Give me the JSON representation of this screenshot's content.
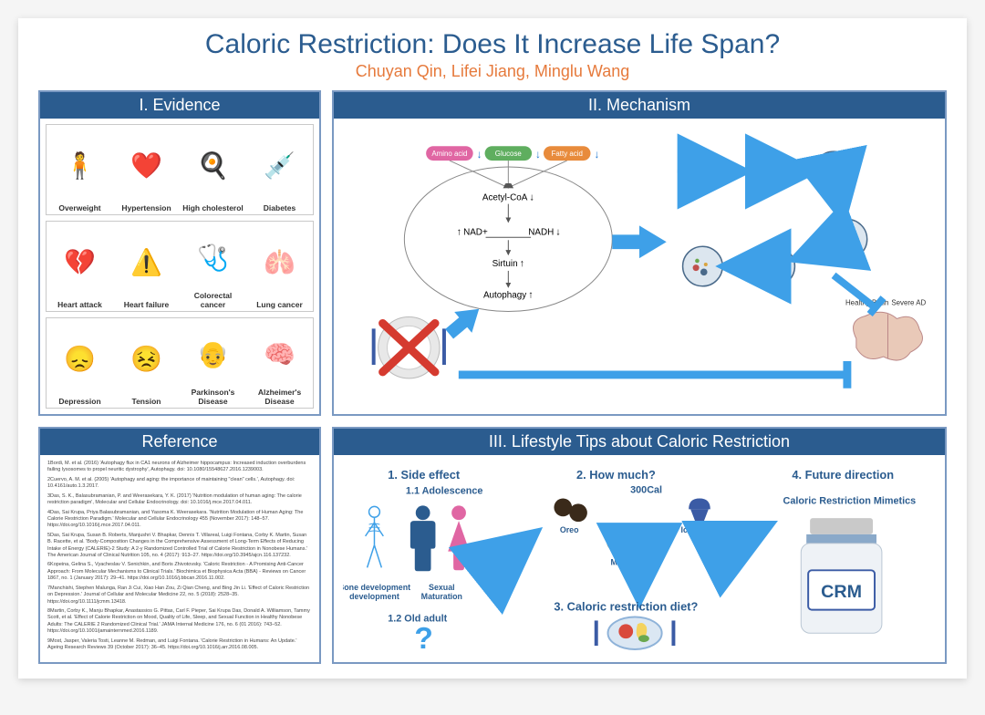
{
  "title": "Caloric Restriction: Does It Increase Life Span?",
  "authors": "Chuyan Qin, Lifei Jiang, Minglu Wang",
  "colors": {
    "panel_border": "#7a99c2",
    "header_bg": "#2b5c8f",
    "header_fg": "#ffffff",
    "title_color": "#2b5c8f",
    "author_color": "#e67a3c",
    "arrow_blue": "#3ea0e8",
    "pill_pink": "#e066a3",
    "pill_green": "#5fae5f",
    "pill_orange": "#e88b3c"
  },
  "evidence": {
    "header": "I. Evidence",
    "rows": [
      [
        {
          "label": "Overweight",
          "emoji": "🧍"
        },
        {
          "label": "Hypertension",
          "emoji": "❤️"
        },
        {
          "label": "High cholesterol",
          "emoji": "🍳"
        },
        {
          "label": "Diabetes",
          "emoji": "💉"
        }
      ],
      [
        {
          "label": "Heart attack",
          "emoji": "💔"
        },
        {
          "label": "Heart failure",
          "emoji": "⚠️"
        },
        {
          "label": "Colorectal cancer",
          "emoji": "🩺"
        },
        {
          "label": "Lung cancer",
          "emoji": "🫁"
        }
      ],
      [
        {
          "label": "Depression",
          "emoji": "😞"
        },
        {
          "label": "Tension",
          "emoji": "😣"
        },
        {
          "label": "Parkinson's Disease",
          "emoji": "👴"
        },
        {
          "label": "Alzheimer's Disease",
          "emoji": "🧠"
        }
      ]
    ]
  },
  "reference": {
    "header": "Reference",
    "items": [
      "1Bordi, M. et al. (2016) 'Autophagy flux in CA1 neurons of Alzheimer hippocampus: Increased induction overburdens failing lysosomes to propel neuritic dystrophy', Autophagy. doi: 10.1080/15548627.2016.1239003.",
      "2Cuervo, A. M. et al. (2005) 'Autophagy and aging: the importance of maintaining \"clean\" cells.', Autophagy. doi: 10.4161/auto.1.3.2017.",
      "3Das, S. K., Balasubramanian, P. and Weerasekara, Y. K. (2017) 'Nutrition modulation of human aging: The calorie restriction paradigm', Molecular and Cellular Endocrinology. doi: 10.1016/j.mce.2017.04.011.",
      "4Das, Sai Krupa, Priya Balasubramanian, and Yasoma K. Weerasekara. 'Nutrition Modulation of Human Aging: The Calorie Restriction Paradigm.' Molecular and Cellular Endocrinology 455 (November 2017): 148–57. https://doi.org/10.1016/j.mce.2017.04.011.",
      "5Das, Sai Krupa, Susan B. Roberts, Manjushri V. Bhapkar, Dennis T. Villareal, Luigi Fontana, Corby K. Martin, Susan B. Racette, et al. 'Body-Composition Changes in the Comprehensive Assessment of Long-Term Effects of Reducing Intake of Energy (CALERIE)-2 Study: A 2-y Randomized Controlled Trial of Calorie Restriction in Nonobese Humans.' The American Journal of Clinical Nutrition 105, no. 4 (2017): 913–27. https://doi.org/10.3945/ajcn.116.137232.",
      "6Kopeina, Gelina S., Vyacheslav V. Senichkin, and Boris Zhivotovsky. 'Caloric Restriction - A Promising Anti-Cancer Approach: From Molecular Mechanisms to Clinical Trials.' Biochimica et Biophysica Acta (BBA) - Reviews on Cancer 1867, no. 1 (January 2017): 29–41. https://doi.org/10.1016/j.bbcan.2016.11.002.",
      "7Manchishi, Stephen Malunga, Ran Ji Cui, Xiao Han Zou, Zi Qian Cheng, and Bing Jin Li. 'Effect of Caloric Restriction on Depression.' Journal of Cellular and Molecular Medicine 22, no. 5 (2018): 2528–35. https://doi.org/10.1111/jcmm.13418.",
      "8Martin, Corby K., Manju Bhapkar, Anastassios G. Pittas, Carl F. Pieper, Sai Krupa Das, Donald A. Williamson, Tammy Scott, et al. 'Effect of Calorie Restriction on Mood, Quality of Life, Sleep, and Sexual Function in Healthy Nonobese Adults: The CALERIE 2 Randomized Clinical Trial.' JAMA Internal Medicine 176, no. 6 (01 2016): 743–52. https://doi.org/10.1001/jamainternmed.2016.1189.",
      "9Most, Jasper, Valeria Tosti, Leanne M. Redman, and Luigi Fontana. 'Calorie Restriction in Humans: An Update.' Ageing Research Reviews 39 (October 2017): 36–45. https://doi.org/10.1016/j.arr.2016.08.005."
    ]
  },
  "mechanism": {
    "header": "II. Mechanism",
    "inputs": [
      {
        "label": "Amino acid",
        "color": "#e066a3",
        "dir": "down"
      },
      {
        "label": "Glucose",
        "color": "#5fae5f",
        "dir": "down"
      },
      {
        "label": "Fatty acid",
        "color": "#e88b3c",
        "dir": "down"
      }
    ],
    "chain": [
      {
        "label": "Acetyl-CoA",
        "dir": "down"
      },
      {
        "label": "NAD+",
        "dir": "up",
        "pair": "NADH",
        "pair_dir": "down"
      },
      {
        "label": "Sirtuin",
        "dir": "up"
      },
      {
        "label": "Autophagy",
        "dir": "up"
      }
    ],
    "brain_labels": {
      "left": "Healthy Brain",
      "right": "Severe AD"
    },
    "plate_crossed": true
  },
  "lifestyle": {
    "header": "III. Lifestyle Tips about Caloric Restriction",
    "sections": {
      "s1": {
        "title": "1. Side effect",
        "sub1": "1.1 Adolescence",
        "sub2": "1.2 Old adult",
        "labels": [
          "Bone development",
          "Sexual Maturation"
        ],
        "qmark": "?"
      },
      "s2": {
        "title": "2. How much?",
        "cal": "300Cal",
        "items": [
          "Oreo",
          "Mooncake",
          "Ice cream"
        ]
      },
      "s3": {
        "title": "3. Caloric restriction diet?"
      },
      "s4": {
        "title": "4. Future direction",
        "sub": "Caloric Restriction Mimetics",
        "jar": "CRM"
      }
    }
  }
}
